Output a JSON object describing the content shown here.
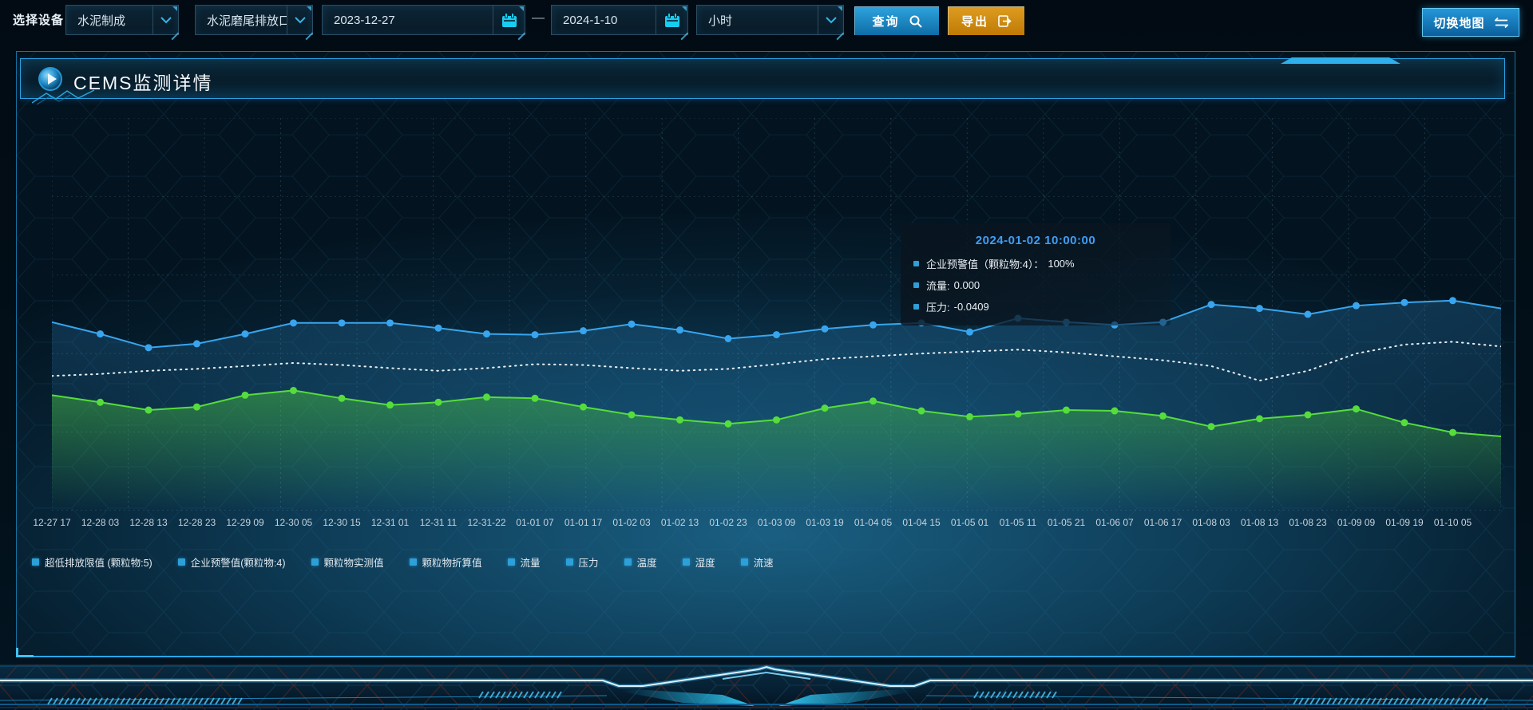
{
  "toolbar": {
    "device_label": "选择设备",
    "select_line": "水泥制成",
    "select_outlet": "水泥磨尾排放口",
    "date_start": "2023-12-27",
    "date_separator": "—",
    "date_end": "2024-1-10",
    "select_interval": "小时",
    "query_label": "查询",
    "export_label": "导出",
    "switch_map_label": "切换地图"
  },
  "panel": {
    "title": "CEMS监测详情"
  },
  "tooltip": {
    "title": "2024-01-02 10:00:00",
    "rows": [
      {
        "label": "企业预警值（颗粒物:4）：",
        "value": "100%"
      },
      {
        "label": "流量:",
        "value": "0.000"
      },
      {
        "label": "压力:",
        "value": "-0.0409"
      }
    ]
  },
  "legend": {
    "items": [
      "超低排放限值 (颗粒物:5)",
      "企业预警值(颗粒物:4)",
      "颗粒物实测值",
      "颗粒物折算值",
      "流量",
      "压力",
      "温度",
      "湿度",
      "流速"
    ]
  },
  "colors": {
    "accent_cyan": "#2fb0ec",
    "query_button": "#1b87c4",
    "export_button": "#cd8a10",
    "series_blue": "#38a5ee",
    "series_white": "#e9eff4",
    "series_green": "#55dd3c",
    "legend_marker": "#2ca0d8",
    "tooltip_title": "#3f9ef5"
  },
  "chart_data": {
    "type": "line",
    "title": "",
    "xlabel": "",
    "ylabel": "",
    "grid": true,
    "legend_position": "bottom",
    "note": "y-axis has no tick labels; values estimated as percent of plot height (0=bottom axis, 100=top). Last value of each series is the unlabeled right-edge continuation point.",
    "x_labels": [
      "12-27 17",
      "12-28 03",
      "12-28 13",
      "12-28 23",
      "12-29 09",
      "12-30 05",
      "12-30 15",
      "12-31 01",
      "12-31 11",
      "12-31-22",
      "01-01 07",
      "01-01 17",
      "01-02 03",
      "01-02 13",
      "01-02 23",
      "01-03 09",
      "01-03 19",
      "01-04 05",
      "01-04 15",
      "01-05 01",
      "01-05 11",
      "01-05 21",
      "01-06 07",
      "01-06 17",
      "01-08 03",
      "01-08 13",
      "01-08 23",
      "01-09 09",
      "01-09 19",
      "01-10 05"
    ],
    "series": [
      {
        "name": "流量",
        "color": "#38a5ee",
        "style": "solid",
        "markers": true,
        "area": true,
        "area_opacity": 0.22,
        "values": [
          48,
          45,
          41.5,
          42.5,
          45,
          47.8,
          47.8,
          47.8,
          46.5,
          45,
          44.8,
          45.8,
          47.5,
          46,
          43.8,
          44.8,
          46.3,
          47.3,
          47.8,
          45.5,
          49,
          48,
          47.3,
          48,
          52.5,
          51.5,
          50,
          52.2,
          53,
          53.5,
          51.5
        ]
      },
      {
        "name": "企业预警值（颗粒物:4）",
        "color": "#e9eff4",
        "style": "dotted",
        "markers": false,
        "area": false,
        "area_opacity": 0,
        "values": [
          34.3,
          34.8,
          35.6,
          36.1,
          36.8,
          37.6,
          37.1,
          36.3,
          35.6,
          36.3,
          37.3,
          37.1,
          36.3,
          35.6,
          36.1,
          37.3,
          38.6,
          39.3,
          40,
          40.5,
          41,
          40.3,
          39.3,
          38.3,
          36.8,
          33.1,
          35.6,
          40,
          42.3,
          43,
          41.8
        ]
      },
      {
        "name": "压力",
        "color": "#55dd3c",
        "style": "solid",
        "markers": true,
        "area": true,
        "area_opacity": 0.4,
        "values": [
          29.4,
          27.6,
          25.6,
          26.4,
          29.4,
          30.6,
          28.6,
          26.9,
          27.6,
          28.9,
          28.6,
          26.4,
          24.4,
          23.1,
          22.1,
          23.1,
          26.1,
          27.9,
          25.4,
          23.9,
          24.6,
          25.6,
          25.4,
          24.1,
          21.4,
          23.4,
          24.4,
          25.9,
          22.4,
          19.9,
          18.9
        ]
      }
    ]
  }
}
